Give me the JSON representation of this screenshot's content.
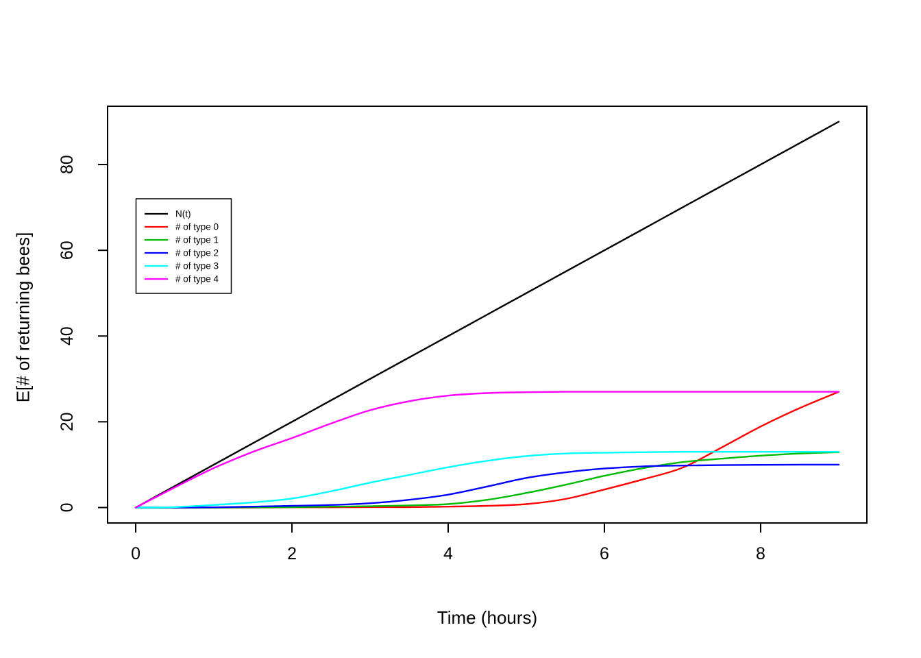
{
  "chart_data": {
    "type": "line",
    "title": "",
    "xlabel": "Time (hours)",
    "ylabel": "E[# of returning bees]",
    "xlim": [
      -0.36,
      9.36
    ],
    "ylim": [
      -3.6,
      93.6
    ],
    "x_ticks": [
      "0",
      "2",
      "4",
      "6",
      "8"
    ],
    "x_tick_values": [
      0,
      2,
      4,
      6,
      8
    ],
    "y_ticks": [
      "0",
      "20",
      "40",
      "60",
      "80"
    ],
    "y_tick_values": [
      0,
      20,
      40,
      60,
      80
    ],
    "grid": false,
    "background_color": "#ffffff",
    "axis_color": "#000000",
    "legend": {
      "position": "upper-left-inset",
      "border": true,
      "entries": [
        "N(t)",
        "# of type 0",
        "# of type 1",
        "# of type 2",
        "# of type 3",
        "# of type 4"
      ]
    },
    "x": [
      0,
      0.5,
      1,
      1.5,
      2,
      2.5,
      3,
      3.5,
      4,
      4.5,
      5,
      5.5,
      6,
      6.5,
      7,
      7.5,
      8,
      8.5,
      9
    ],
    "series": [
      {
        "name": "N(t)",
        "color": "#000000",
        "values": [
          0,
          5,
          10,
          15,
          20,
          25,
          30,
          35,
          40,
          45,
          50,
          55,
          60,
          65,
          70,
          75,
          80,
          85,
          90
        ]
      },
      {
        "name": "# of type 0",
        "color": "#ff0000",
        "values": [
          0,
          0,
          0,
          0,
          0.05,
          0.05,
          0.1,
          0.1,
          0.2,
          0.4,
          0.8,
          2.0,
          4.2,
          6.6,
          9.3,
          14.0,
          18.9,
          23.2,
          27
        ]
      },
      {
        "name": "# of type 1",
        "color": "#00bb00",
        "values": [
          0,
          0,
          0,
          0.05,
          0.1,
          0.2,
          0.3,
          0.5,
          0.8,
          1.8,
          3.4,
          5.3,
          7.4,
          9.2,
          10.6,
          11.4,
          12.1,
          12.6,
          12.9
        ]
      },
      {
        "name": "# of type 2",
        "color": "#0000ff",
        "values": [
          0,
          0,
          0.05,
          0.2,
          0.4,
          0.6,
          1.0,
          1.8,
          3.0,
          4.9,
          6.9,
          8.2,
          9.1,
          9.6,
          9.8,
          9.9,
          9.95,
          10,
          10
        ]
      },
      {
        "name": "# of type 3",
        "color": "#00ffff",
        "values": [
          0,
          0.1,
          0.6,
          1.2,
          2.1,
          3.8,
          5.8,
          7.6,
          9.4,
          10.9,
          12.0,
          12.6,
          12.8,
          12.9,
          13,
          13,
          13,
          13,
          13
        ]
      },
      {
        "name": "# of type 4",
        "color": "#ff00ff",
        "values": [
          0,
          4.7,
          9.2,
          13.0,
          16.2,
          19.6,
          22.7,
          24.8,
          26.1,
          26.7,
          26.9,
          27,
          27,
          27,
          27,
          27,
          27,
          27,
          27
        ]
      }
    ]
  }
}
